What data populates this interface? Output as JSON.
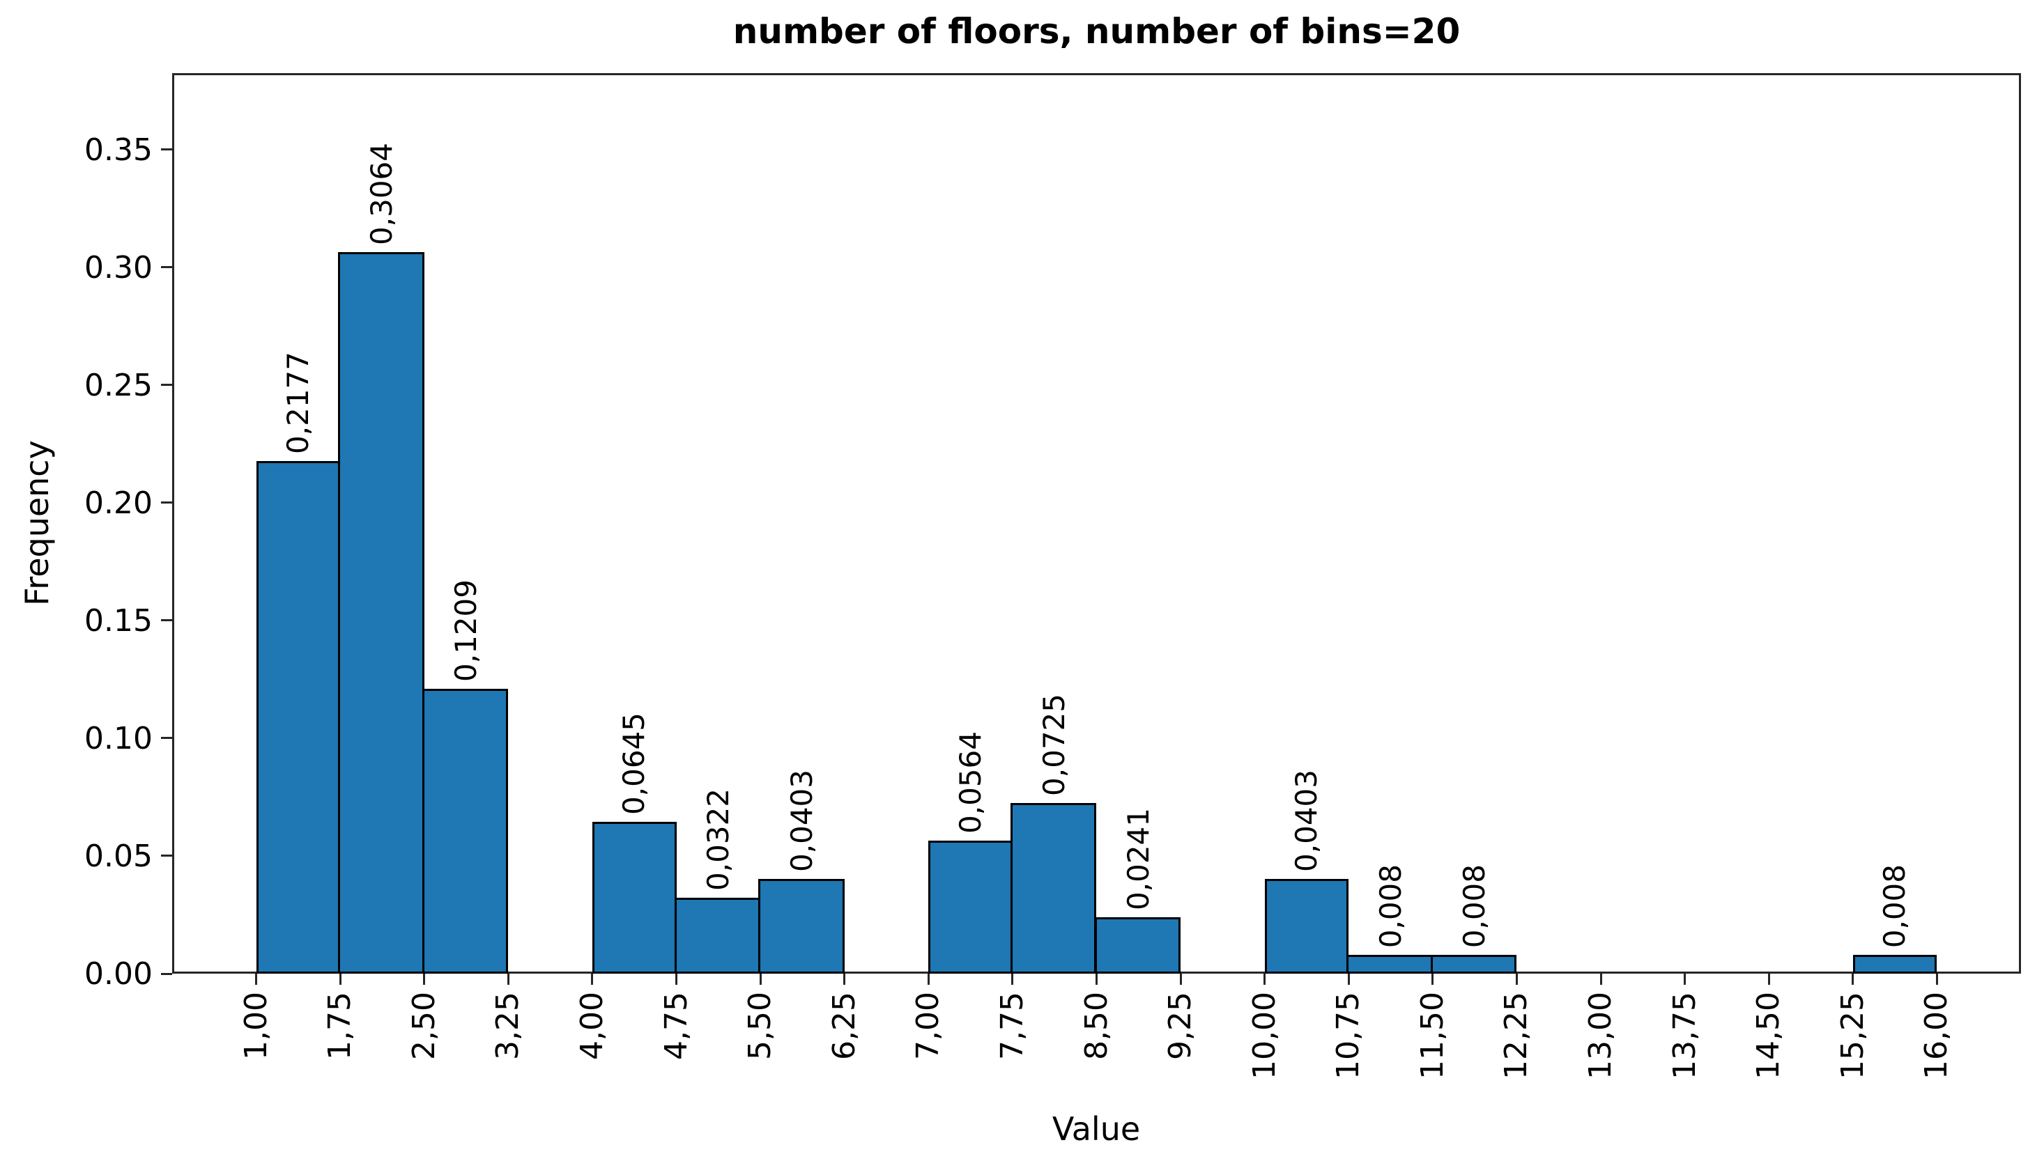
{
  "figure": {
    "background": "#ffffff"
  },
  "chart_data": {
    "type": "bar",
    "subtype": "histogram",
    "title": "number of floors, number of bins=20",
    "xlabel": "Value",
    "ylabel": "Frequency",
    "bin_edges": [
      1.0,
      1.75,
      2.5,
      3.25,
      4.0,
      4.75,
      5.5,
      6.25,
      7.0,
      7.75,
      8.5,
      9.25,
      10.0,
      10.75,
      11.5,
      12.25,
      13.0,
      13.75,
      14.5,
      15.25,
      16.0
    ],
    "values": [
      0.2177,
      0.3064,
      0.1209,
      0,
      0.0645,
      0.0322,
      0.0403,
      0,
      0.0564,
      0.0725,
      0.0241,
      0,
      0.0403,
      0.008,
      0.008,
      0,
      0,
      0,
      0,
      0.008
    ],
    "bar_labels": [
      "0,2177",
      "0,3064",
      "0,1209",
      "",
      "0,0645",
      "0,0322",
      "0,0403",
      "",
      "0,0564",
      "0,0725",
      "0,0241",
      "",
      "0,0403",
      "0,008",
      "0,008",
      "",
      "",
      "",
      "",
      "0,008"
    ],
    "x_ticks": [
      1.0,
      1.75,
      2.5,
      3.25,
      4.0,
      4.75,
      5.5,
      6.25,
      7.0,
      7.75,
      8.5,
      9.25,
      10.0,
      10.75,
      11.5,
      12.25,
      13.0,
      13.75,
      14.5,
      15.25,
      16.0
    ],
    "x_tick_labels": [
      "1,00",
      "1,75",
      "2,50",
      "3,25",
      "4,00",
      "4,75",
      "5,50",
      "6,25",
      "7,00",
      "7,75",
      "8,50",
      "9,25",
      "10,00",
      "10,75",
      "11,50",
      "12,25",
      "13,00",
      "13,75",
      "14,50",
      "15,25",
      "16,00"
    ],
    "y_ticks": [
      0.0,
      0.05,
      0.1,
      0.15,
      0.2,
      0.25,
      0.3,
      0.35
    ],
    "y_tick_labels": [
      "0.00",
      "0.05",
      "0.10",
      "0.15",
      "0.20",
      "0.25",
      "0.30",
      "0.35"
    ],
    "xlim": [
      0.25,
      16.75
    ],
    "ylim": [
      0,
      0.3825
    ],
    "grid": false,
    "legend": null,
    "bar_color": "#1f77b4",
    "bar_edge_color": "#000000",
    "axis_color": "#262626",
    "text_color": "#000000",
    "decimal_separator_x": ",",
    "decimal_separator_y": "."
  }
}
